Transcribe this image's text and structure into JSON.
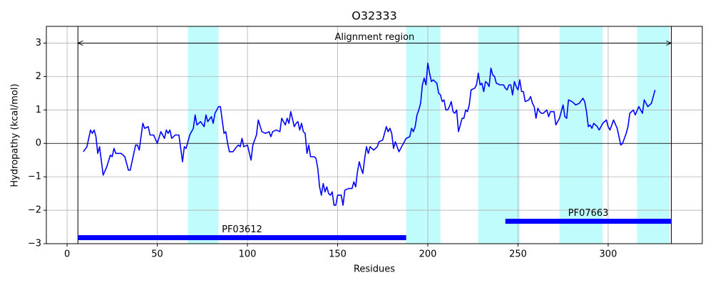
{
  "chart_data": {
    "type": "line",
    "title": "O32333",
    "x_label": "Residues",
    "y_label": "Hydropathy (kcal/mol)",
    "xlim": [
      -11.5,
      352.2
    ],
    "ylim": [
      -3,
      3.5
    ],
    "xticks": [
      0,
      50,
      100,
      150,
      200,
      250,
      300
    ],
    "yticks": [
      {
        "value": -3,
        "label": "−3"
      },
      {
        "value": -2,
        "label": "−2"
      },
      {
        "value": -1,
        "label": "−1"
      },
      0,
      1,
      2,
      3
    ],
    "grid": true,
    "hline": 0,
    "color": "#0000ff",
    "span_color": "#c0fcfc",
    "highlight_spans": [
      [
        67,
        84
      ],
      [
        188,
        207
      ],
      [
        228,
        251
      ],
      [
        273,
        297
      ],
      [
        316,
        334
      ]
    ],
    "annotation": {
      "text": "Alignment region",
      "start": 6,
      "end": 335,
      "y": 3
    },
    "domains": [
      {
        "label": "PF03612",
        "start": 6,
        "end": 188,
        "y": -2.82
      },
      {
        "label": "PF07663",
        "start": 243,
        "end": 335,
        "y": -2.33
      }
    ],
    "x": [
      9,
      11,
      13,
      14,
      15,
      16,
      17,
      18,
      20,
      22,
      24,
      25,
      26,
      27,
      30,
      32,
      34,
      35,
      37,
      38,
      39,
      40,
      42,
      43,
      45,
      46,
      48,
      50,
      52,
      54,
      55,
      56,
      57,
      58,
      60,
      62,
      64,
      65,
      66,
      68,
      70,
      71,
      72,
      74,
      76,
      77,
      78,
      80,
      81,
      82,
      84,
      85,
      86,
      87,
      88,
      89,
      90,
      92,
      94,
      95,
      96,
      97,
      98,
      100,
      102,
      103,
      105,
      106,
      108,
      110,
      112,
      113,
      114,
      116,
      118,
      119,
      121,
      122,
      123,
      124,
      126,
      127,
      128,
      129,
      130,
      131,
      132,
      133,
      134,
      135,
      137,
      138,
      139,
      140,
      141,
      142,
      143,
      144,
      145,
      146,
      147,
      148,
      149,
      150,
      152,
      153,
      154,
      156,
      158,
      159,
      160,
      161,
      162,
      163,
      164,
      165,
      166,
      167,
      168,
      170,
      172,
      173,
      175,
      176,
      177,
      178,
      179,
      180,
      181,
      182,
      184,
      186,
      188,
      190,
      191,
      192,
      193,
      194,
      195,
      196,
      197,
      198,
      199,
      200,
      201,
      202,
      203,
      204,
      205,
      206,
      207,
      208,
      209,
      210,
      211,
      212,
      213,
      214,
      215,
      216,
      217,
      218,
      219,
      220,
      221,
      222,
      223,
      224,
      226,
      227,
      228,
      229,
      230,
      231,
      232,
      233,
      234,
      235,
      236,
      237,
      238,
      240,
      242,
      243,
      244,
      245,
      246,
      247,
      248,
      249,
      250,
      251,
      252,
      253,
      254,
      256,
      257,
      258,
      259,
      260,
      261,
      262,
      263,
      264,
      266,
      267,
      268,
      270,
      271,
      273,
      275,
      276,
      277,
      278,
      280,
      282,
      284,
      286,
      287,
      288,
      289,
      290,
      291,
      292,
      294,
      295,
      297,
      299,
      300,
      301,
      302,
      303,
      305,
      307,
      308,
      310,
      311,
      312,
      314,
      315,
      317,
      319,
      320,
      322,
      324,
      326
    ],
    "values": [
      -0.25,
      -0.1,
      0.4,
      0.3,
      0.4,
      0.2,
      -0.3,
      -0.1,
      -0.95,
      -0.7,
      -0.35,
      -0.4,
      -0.15,
      -0.3,
      -0.3,
      -0.4,
      -0.8,
      -0.8,
      -0.3,
      -0.05,
      -0.05,
      -0.2,
      0.6,
      0.45,
      0.5,
      0.25,
      0.25,
      0.0,
      0.35,
      0.15,
      0.4,
      0.3,
      0.4,
      0.15,
      0.25,
      0.25,
      -0.55,
      -0.1,
      -0.15,
      0.25,
      0.45,
      0.85,
      0.55,
      0.65,
      0.5,
      0.85,
      0.65,
      0.8,
      0.6,
      0.9,
      1.1,
      1.1,
      0.7,
      0.3,
      0.35,
      0.0,
      -0.25,
      -0.25,
      -0.1,
      -0.05,
      -0.1,
      0.15,
      -0.1,
      -0.05,
      -0.5,
      -0.05,
      0.25,
      0.7,
      0.35,
      0.3,
      0.35,
      0.2,
      0.35,
      0.4,
      0.35,
      0.75,
      0.55,
      0.75,
      0.6,
      0.95,
      0.5,
      0.6,
      0.65,
      0.4,
      0.6,
      0.35,
      0.3,
      -0.3,
      -0.05,
      -0.4,
      -0.4,
      -0.45,
      -0.75,
      -1.3,
      -1.55,
      -1.2,
      -1.45,
      -1.3,
      -1.5,
      -1.55,
      -1.45,
      -1.85,
      -1.85,
      -1.55,
      -1.55,
      -1.85,
      -1.4,
      -1.35,
      -1.35,
      -1.15,
      -1.3,
      -0.85,
      -0.55,
      -0.75,
      -0.9,
      -0.45,
      -0.1,
      -0.3,
      -0.1,
      -0.2,
      -0.1,
      0.05,
      0.1,
      0.3,
      0.5,
      0.35,
      0.45,
      0.3,
      -0.15,
      0.05,
      -0.25,
      -0.05,
      0.15,
      0.2,
      0.45,
      0.35,
      0.5,
      0.85,
      1.0,
      1.2,
      1.75,
      1.95,
      1.75,
      2.4,
      2.1,
      1.85,
      1.9,
      1.85,
      1.8,
      1.5,
      1.45,
      1.25,
      1.3,
      1.0,
      1.0,
      1.1,
      1.25,
      0.95,
      0.9,
      1.0,
      0.35,
      0.55,
      0.75,
      0.75,
      1.0,
      0.95,
      1.15,
      1.6,
      1.65,
      1.75,
      2.1,
      1.75,
      1.8,
      1.55,
      1.85,
      1.8,
      1.7,
      2.25,
      2.05,
      2.0,
      1.8,
      1.75,
      1.75,
      1.65,
      1.6,
      1.75,
      1.75,
      1.45,
      1.85,
      1.7,
      1.6,
      1.9,
      1.55,
      1.55,
      1.25,
      1.3,
      1.4,
      1.2,
      1.1,
      0.75,
      1.05,
      0.95,
      0.9,
      0.9,
      1.0,
      0.8,
      0.95,
      0.95,
      0.55,
      0.75,
      1.15,
      0.8,
      0.75,
      1.3,
      1.25,
      1.15,
      1.2,
      1.35,
      1.25,
      0.95,
      0.5,
      0.55,
      0.45,
      0.6,
      0.5,
      0.4,
      0.6,
      0.7,
      0.5,
      0.4,
      0.55,
      0.7,
      0.45,
      -0.05,
      0.0,
      0.3,
      0.5,
      0.9,
      1.0,
      0.85,
      1.1,
      0.9,
      1.3,
      1.1,
      1.2,
      1.6
    ]
  }
}
